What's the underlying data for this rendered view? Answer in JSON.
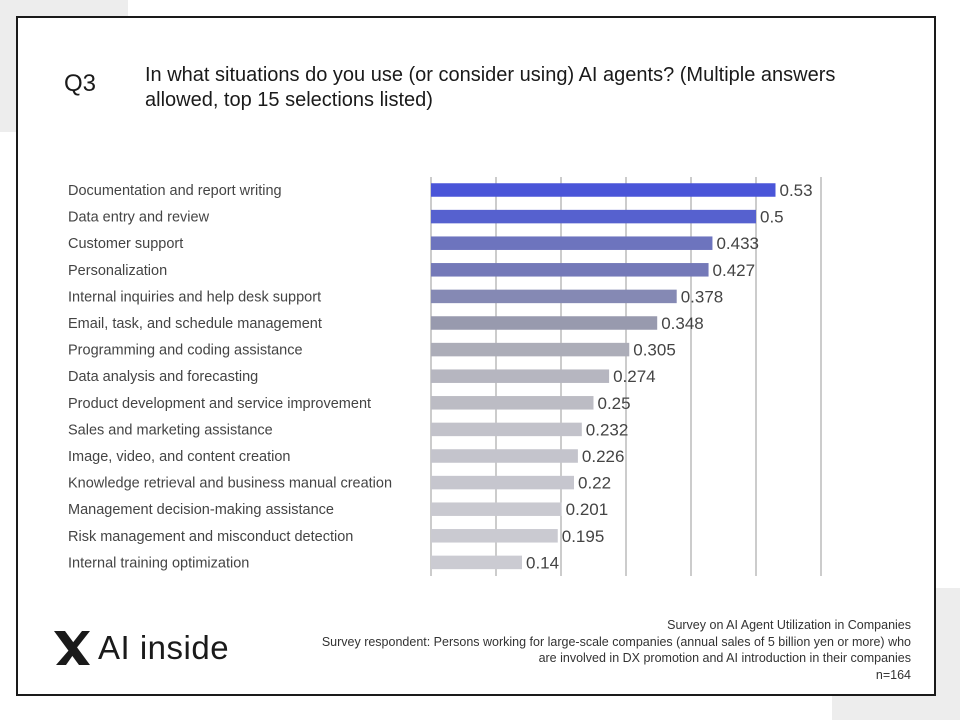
{
  "slide": {
    "question_number": "Q3",
    "question_text": "In what situations do you use (or consider using) AI agents? (Multiple answers allowed, top 15 selections listed)"
  },
  "chart_data": {
    "type": "bar",
    "orientation": "horizontal",
    "categories": [
      "Documentation and report writing",
      "Data entry and review",
      "Customer support",
      "Personalization",
      "Internal inquiries and help desk support",
      "Email, task, and schedule management",
      "Programming and coding assistance",
      "Data analysis and forecasting",
      "Product development and service improvement",
      "Sales and marketing assistance",
      "Image, video, and content creation",
      "Knowledge retrieval and business manual creation",
      "Management decision-making assistance",
      "Risk management and misconduct detection",
      "Internal training optimization"
    ],
    "values": [
      0.53,
      0.5,
      0.433,
      0.427,
      0.378,
      0.348,
      0.305,
      0.274,
      0.25,
      0.232,
      0.226,
      0.22,
      0.201,
      0.195,
      0.14
    ],
    "value_labels": [
      "0.53",
      "0.5",
      "0.433",
      "0.427",
      "0.378",
      "0.348",
      "0.305",
      "0.274",
      "0.25",
      "0.232",
      "0.226",
      "0.22",
      "0.201",
      "0.195",
      "0.14"
    ],
    "bar_colors": [
      "#4a55d8",
      "#5661cf",
      "#6d74be",
      "#7479b8",
      "#8589b4",
      "#989aae",
      "#acadb8",
      "#b6b6c0",
      "#bcbcc4",
      "#c2c2ca",
      "#c4c4cc",
      "#c6c6ce",
      "#c9c9d0",
      "#cacad1",
      "#cbcbd2"
    ],
    "xlim": [
      0,
      0.6
    ],
    "grid": true
  },
  "footer": {
    "survey_title": "Survey on AI Agent Utilization in Companies",
    "respondent_line1": "Survey respondent: Persons working for large-scale companies (annual sales of 5 billion yen or more) who",
    "respondent_line2": "are involved in DX promotion and AI introduction in their companies",
    "sample_size": "n=164"
  },
  "logo": {
    "text": "AI inside",
    "icon": "ai-inside-x-mark-icon"
  }
}
